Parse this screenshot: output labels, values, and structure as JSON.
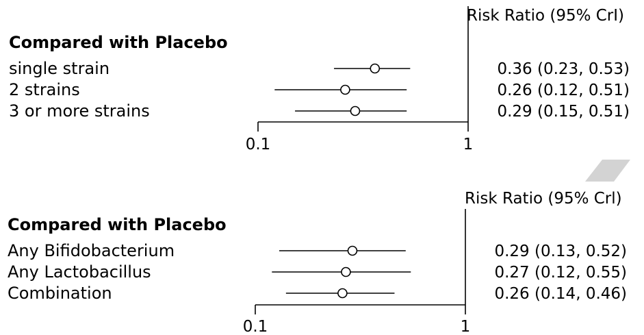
{
  "chart_data": [
    {
      "type": "forest",
      "scale": "log",
      "estimate_header": "Risk Ratio (95% CrI)",
      "group_title": "Compared with Placebo",
      "xticks": [
        0.1,
        1
      ],
      "xtick_labels": [
        "0.1",
        "1"
      ],
      "reference_line": 1,
      "rows": [
        {
          "label": "single strain",
          "estimate": 0.36,
          "lower": 0.23,
          "upper": 0.53,
          "text": "0.36 (0.23, 0.53)"
        },
        {
          "label": "2 strains",
          "estimate": 0.26,
          "lower": 0.12,
          "upper": 0.51,
          "text": "0.26 (0.12, 0.51)"
        },
        {
          "label": "3 or more strains",
          "estimate": 0.29,
          "lower": 0.15,
          "upper": 0.51,
          "text": "0.29 (0.15, 0.51)"
        }
      ]
    },
    {
      "type": "forest",
      "scale": "log",
      "estimate_header": "Risk Ratio (95% Crl)",
      "group_title": "Compared with Placebo",
      "xticks": [
        0.1,
        1
      ],
      "xtick_labels": [
        "0.1",
        "1"
      ],
      "reference_line": 1,
      "rows": [
        {
          "label": "Any Bifidobacterium",
          "estimate": 0.29,
          "lower": 0.13,
          "upper": 0.52,
          "text": "0.29 (0.13, 0.52)"
        },
        {
          "label": "Any Lactobacillus",
          "estimate": 0.27,
          "lower": 0.12,
          "upper": 0.55,
          "text": "0.27 (0.12, 0.55)"
        },
        {
          "label": "Combination",
          "estimate": 0.26,
          "lower": 0.14,
          "upper": 0.46,
          "text": "0.26 (0.14, 0.46)"
        }
      ]
    }
  ]
}
